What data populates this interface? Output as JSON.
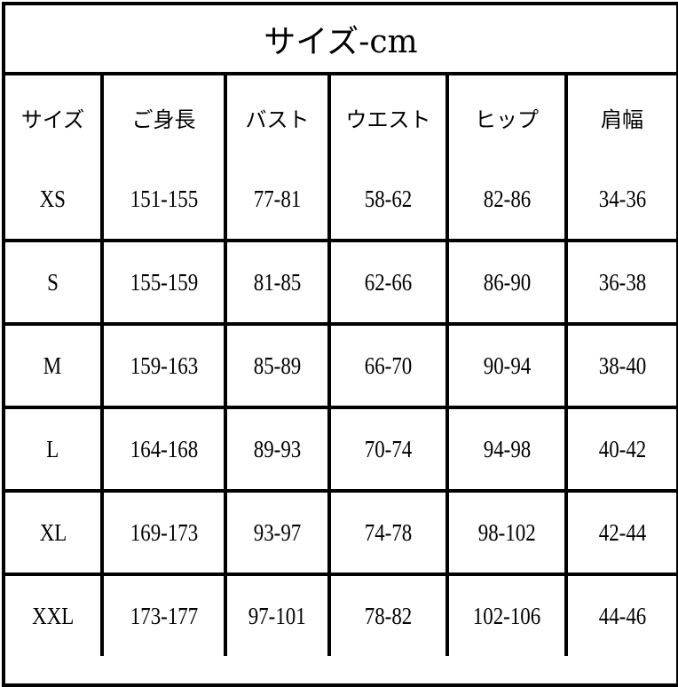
{
  "title": "サイズ-cm",
  "headers": [
    "サイズ",
    "ご身長",
    "バスト",
    "ウエスト",
    "ヒップ",
    "肩幅"
  ],
  "rows": [
    [
      "XS",
      "151-155",
      "77-81",
      "58-62",
      "82-86",
      "34-36"
    ],
    [
      "S",
      "155-159",
      "81-85",
      "62-66",
      "86-90",
      "36-38"
    ],
    [
      "M",
      "159-163",
      "85-89",
      "66-70",
      "90-94",
      "38-40"
    ],
    [
      "L",
      "164-168",
      "89-93",
      "70-74",
      "94-98",
      "40-42"
    ],
    [
      "XL",
      "169-173",
      "93-97",
      "74-78",
      "98-102",
      "42-44"
    ],
    [
      "XXL",
      "173-177",
      "97-101",
      "78-82",
      "102-106",
      "44-46"
    ]
  ]
}
